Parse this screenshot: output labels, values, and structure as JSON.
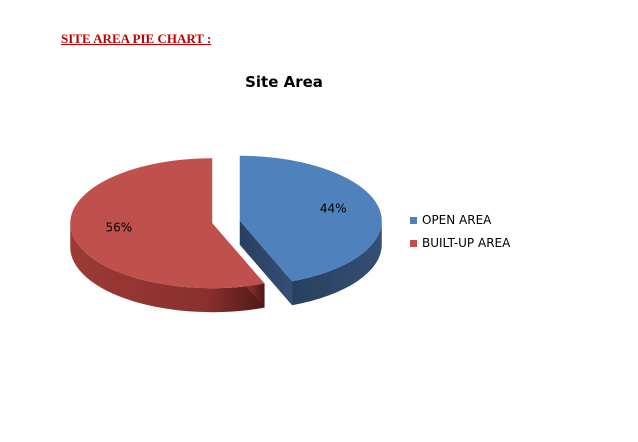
{
  "page": {
    "heading": "SITE AREA PIE CHART :"
  },
  "chart_data": {
    "type": "pie",
    "title": "Site Area",
    "categories": [
      "OPEN AREA",
      "BUILT-UP AREA"
    ],
    "values": [
      44,
      56
    ],
    "labels": [
      "44%",
      "56%"
    ],
    "colors": [
      "#4f81bd",
      "#c0504d"
    ],
    "exploded": true,
    "three_d": true,
    "legend_position": "right"
  }
}
